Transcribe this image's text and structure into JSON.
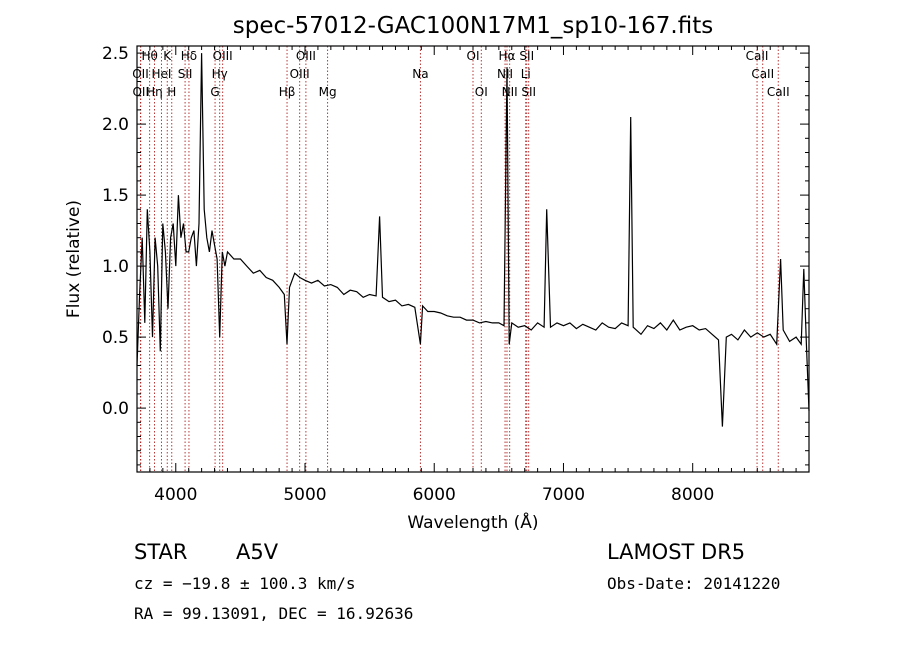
{
  "chart_data": {
    "type": "line",
    "title": "spec-57012-GAC100N17M1_sp10-167.fits",
    "xlabel": "Wavelength (Å)",
    "ylabel": "Flux (relative)",
    "xlim": [
      3700,
      8900
    ],
    "ylim": [
      -0.45,
      2.55
    ],
    "xticks": [
      4000,
      5000,
      6000,
      7000,
      8000
    ],
    "yticks": [
      0.0,
      0.5,
      1.0,
      1.5,
      2.0,
      2.5
    ],
    "xtick_labels": [
      "4000",
      "5000",
      "6000",
      "7000",
      "8000"
    ],
    "ytick_labels": [
      "0.0",
      "0.5",
      "1.0",
      "1.5",
      "2.0",
      "2.5"
    ],
    "grid": false,
    "series": [
      {
        "values_x": [
          3700,
          3720,
          3740,
          3760,
          3780,
          3800,
          3820,
          3840,
          3860,
          3880,
          3900,
          3920,
          3940,
          3960,
          3980,
          4000,
          4020,
          4040,
          4060,
          4080,
          4100,
          4120,
          4140,
          4160,
          4180,
          4200,
          4220,
          4240,
          4260,
          4280,
          4300,
          4320,
          4340,
          4360,
          4380,
          4400,
          4450,
          4500,
          4550,
          4600,
          4650,
          4700,
          4750,
          4800,
          4840,
          4861,
          4880,
          4920,
          4960,
          5000,
          5050,
          5100,
          5150,
          5200,
          5250,
          5300,
          5350,
          5400,
          5450,
          5500,
          5550,
          5577,
          5600,
          5650,
          5700,
          5750,
          5800,
          5850,
          5893,
          5910,
          5950,
          6000,
          6050,
          6100,
          6150,
          6200,
          6250,
          6300,
          6350,
          6400,
          6450,
          6500,
          6540,
          6563,
          6580,
          6600,
          6650,
          6700,
          6750,
          6800,
          6850,
          6870,
          6900,
          6950,
          7000,
          7050,
          7100,
          7150,
          7200,
          7250,
          7300,
          7350,
          7400,
          7450,
          7500,
          7520,
          7540,
          7600,
          7650,
          7700,
          7750,
          7800,
          7850,
          7900,
          7950,
          8000,
          8050,
          8100,
          8150,
          8200,
          8230,
          8260,
          8300,
          8350,
          8400,
          8450,
          8500,
          8550,
          8600,
          8650,
          8680,
          8700,
          8750,
          8800,
          8840,
          8860,
          8880,
          8900
        ],
        "values_y": [
          0.3,
          0.8,
          1.2,
          0.6,
          1.4,
          1.1,
          0.5,
          1.2,
          1.0,
          0.4,
          1.3,
          1.1,
          0.7,
          1.2,
          1.3,
          1.0,
          1.5,
          1.2,
          1.3,
          1.1,
          1.1,
          1.2,
          1.25,
          1.0,
          1.3,
          2.5,
          1.4,
          1.2,
          1.1,
          1.25,
          1.15,
          1.05,
          0.5,
          1.1,
          1.0,
          1.1,
          1.05,
          1.05,
          1.0,
          0.95,
          0.97,
          0.92,
          0.9,
          0.85,
          0.8,
          0.45,
          0.85,
          0.95,
          0.92,
          0.9,
          0.88,
          0.9,
          0.86,
          0.87,
          0.85,
          0.8,
          0.83,
          0.82,
          0.78,
          0.8,
          0.79,
          1.35,
          0.78,
          0.75,
          0.76,
          0.72,
          0.73,
          0.71,
          0.45,
          0.72,
          0.68,
          0.68,
          0.67,
          0.65,
          0.64,
          0.64,
          0.62,
          0.62,
          0.6,
          0.61,
          0.6,
          0.6,
          0.58,
          2.4,
          0.45,
          0.6,
          0.57,
          0.58,
          0.55,
          0.6,
          0.57,
          1.4,
          0.57,
          0.6,
          0.58,
          0.6,
          0.56,
          0.59,
          0.57,
          0.55,
          0.6,
          0.57,
          0.56,
          0.6,
          0.58,
          2.05,
          0.57,
          0.52,
          0.58,
          0.56,
          0.6,
          0.55,
          0.62,
          0.55,
          0.57,
          0.58,
          0.55,
          0.56,
          0.52,
          0.48,
          -0.13,
          0.5,
          0.52,
          0.48,
          0.55,
          0.5,
          0.53,
          0.5,
          0.52,
          0.45,
          1.05,
          0.55,
          0.47,
          0.5,
          0.45,
          0.98,
          0.45,
          -0.02
        ]
      }
    ],
    "line_ids": [
      {
        "label": "Hθ",
        "wave": 3798,
        "row": 1
      },
      {
        "label": "OII",
        "wave": 3727,
        "row": 2
      },
      {
        "label": "OII",
        "wave": 3729,
        "row": 3
      },
      {
        "label": "Hη",
        "wave": 3835,
        "row": 3
      },
      {
        "label": "K",
        "wave": 3934,
        "row": 1
      },
      {
        "label": "HeI",
        "wave": 3889,
        "row": 2
      },
      {
        "label": "H",
        "wave": 3969,
        "row": 3
      },
      {
        "label": "Hδ",
        "wave": 4102,
        "row": 1
      },
      {
        "label": "SII",
        "wave": 4072,
        "row": 2
      },
      {
        "label": "OIII",
        "wave": 4363,
        "row": 1
      },
      {
        "label": "Hγ",
        "wave": 4340,
        "row": 2
      },
      {
        "label": "G",
        "wave": 4304,
        "row": 3
      },
      {
        "label": "Hβ",
        "wave": 4861,
        "row": 3
      },
      {
        "label": "OIII",
        "wave": 5007,
        "row": 1
      },
      {
        "label": "OIII",
        "wave": 4959,
        "row": 2
      },
      {
        "label": "Mg",
        "wave": 5175,
        "row": 3
      },
      {
        "label": "Na",
        "wave": 5893,
        "row": 2
      },
      {
        "label": "OI",
        "wave": 6300,
        "row": 1
      },
      {
        "label": "OI",
        "wave": 6364,
        "row": 3
      },
      {
        "label": "Hα",
        "wave": 6563,
        "row": 1
      },
      {
        "label": "NII",
        "wave": 6548,
        "row": 2
      },
      {
        "label": "NII",
        "wave": 6584,
        "row": 3
      },
      {
        "label": "SII",
        "wave": 6716,
        "row": 1
      },
      {
        "label": "Li",
        "wave": 6708,
        "row": 2
      },
      {
        "label": "SII",
        "wave": 6731,
        "row": 3
      },
      {
        "label": "CaII",
        "wave": 8498,
        "row": 1
      },
      {
        "label": "CaII",
        "wave": 8542,
        "row": 2
      },
      {
        "label": "CaII",
        "wave": 8662,
        "row": 3
      }
    ]
  },
  "info": {
    "class": "STAR",
    "subclass": "A5V",
    "survey": "LAMOST DR5",
    "cz": "cz = −19.8 ± 100.3 km/s",
    "obs_date": "Obs-Date: 20141220",
    "coords": "RA =  99.13091, DEC =  16.92636"
  },
  "colors": {
    "spectrum": "#000000",
    "line_marker": "#b22222",
    "axes": "#000000",
    "background": "#ffffff"
  }
}
